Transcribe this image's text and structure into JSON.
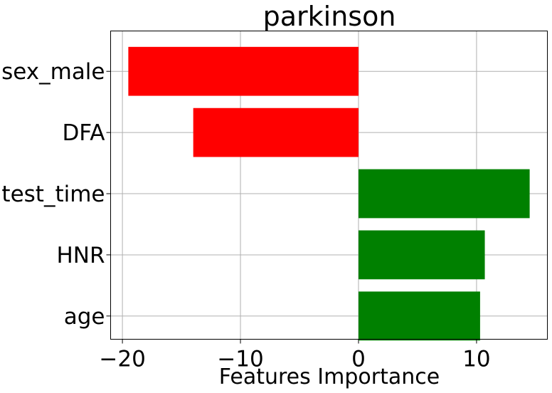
{
  "chart_data": {
    "type": "bar",
    "orientation": "horizontal",
    "title": "parkinson",
    "xlabel": "Features Importance",
    "ylabel": "",
    "categories": [
      "sex_male",
      "DFA",
      "test_time",
      "HNR",
      "age"
    ],
    "values": [
      -19.5,
      -14.0,
      14.5,
      10.7,
      10.3
    ],
    "bar_colors": [
      "#ff0000",
      "#ff0000",
      "#008000",
      "#008000",
      "#008000"
    ],
    "xlim": [
      -21.0,
      16.0
    ],
    "xticks": [
      -20,
      -10,
      0,
      10
    ],
    "xtick_labels": [
      "−20",
      "−10",
      "0",
      "10"
    ],
    "grid": true
  }
}
